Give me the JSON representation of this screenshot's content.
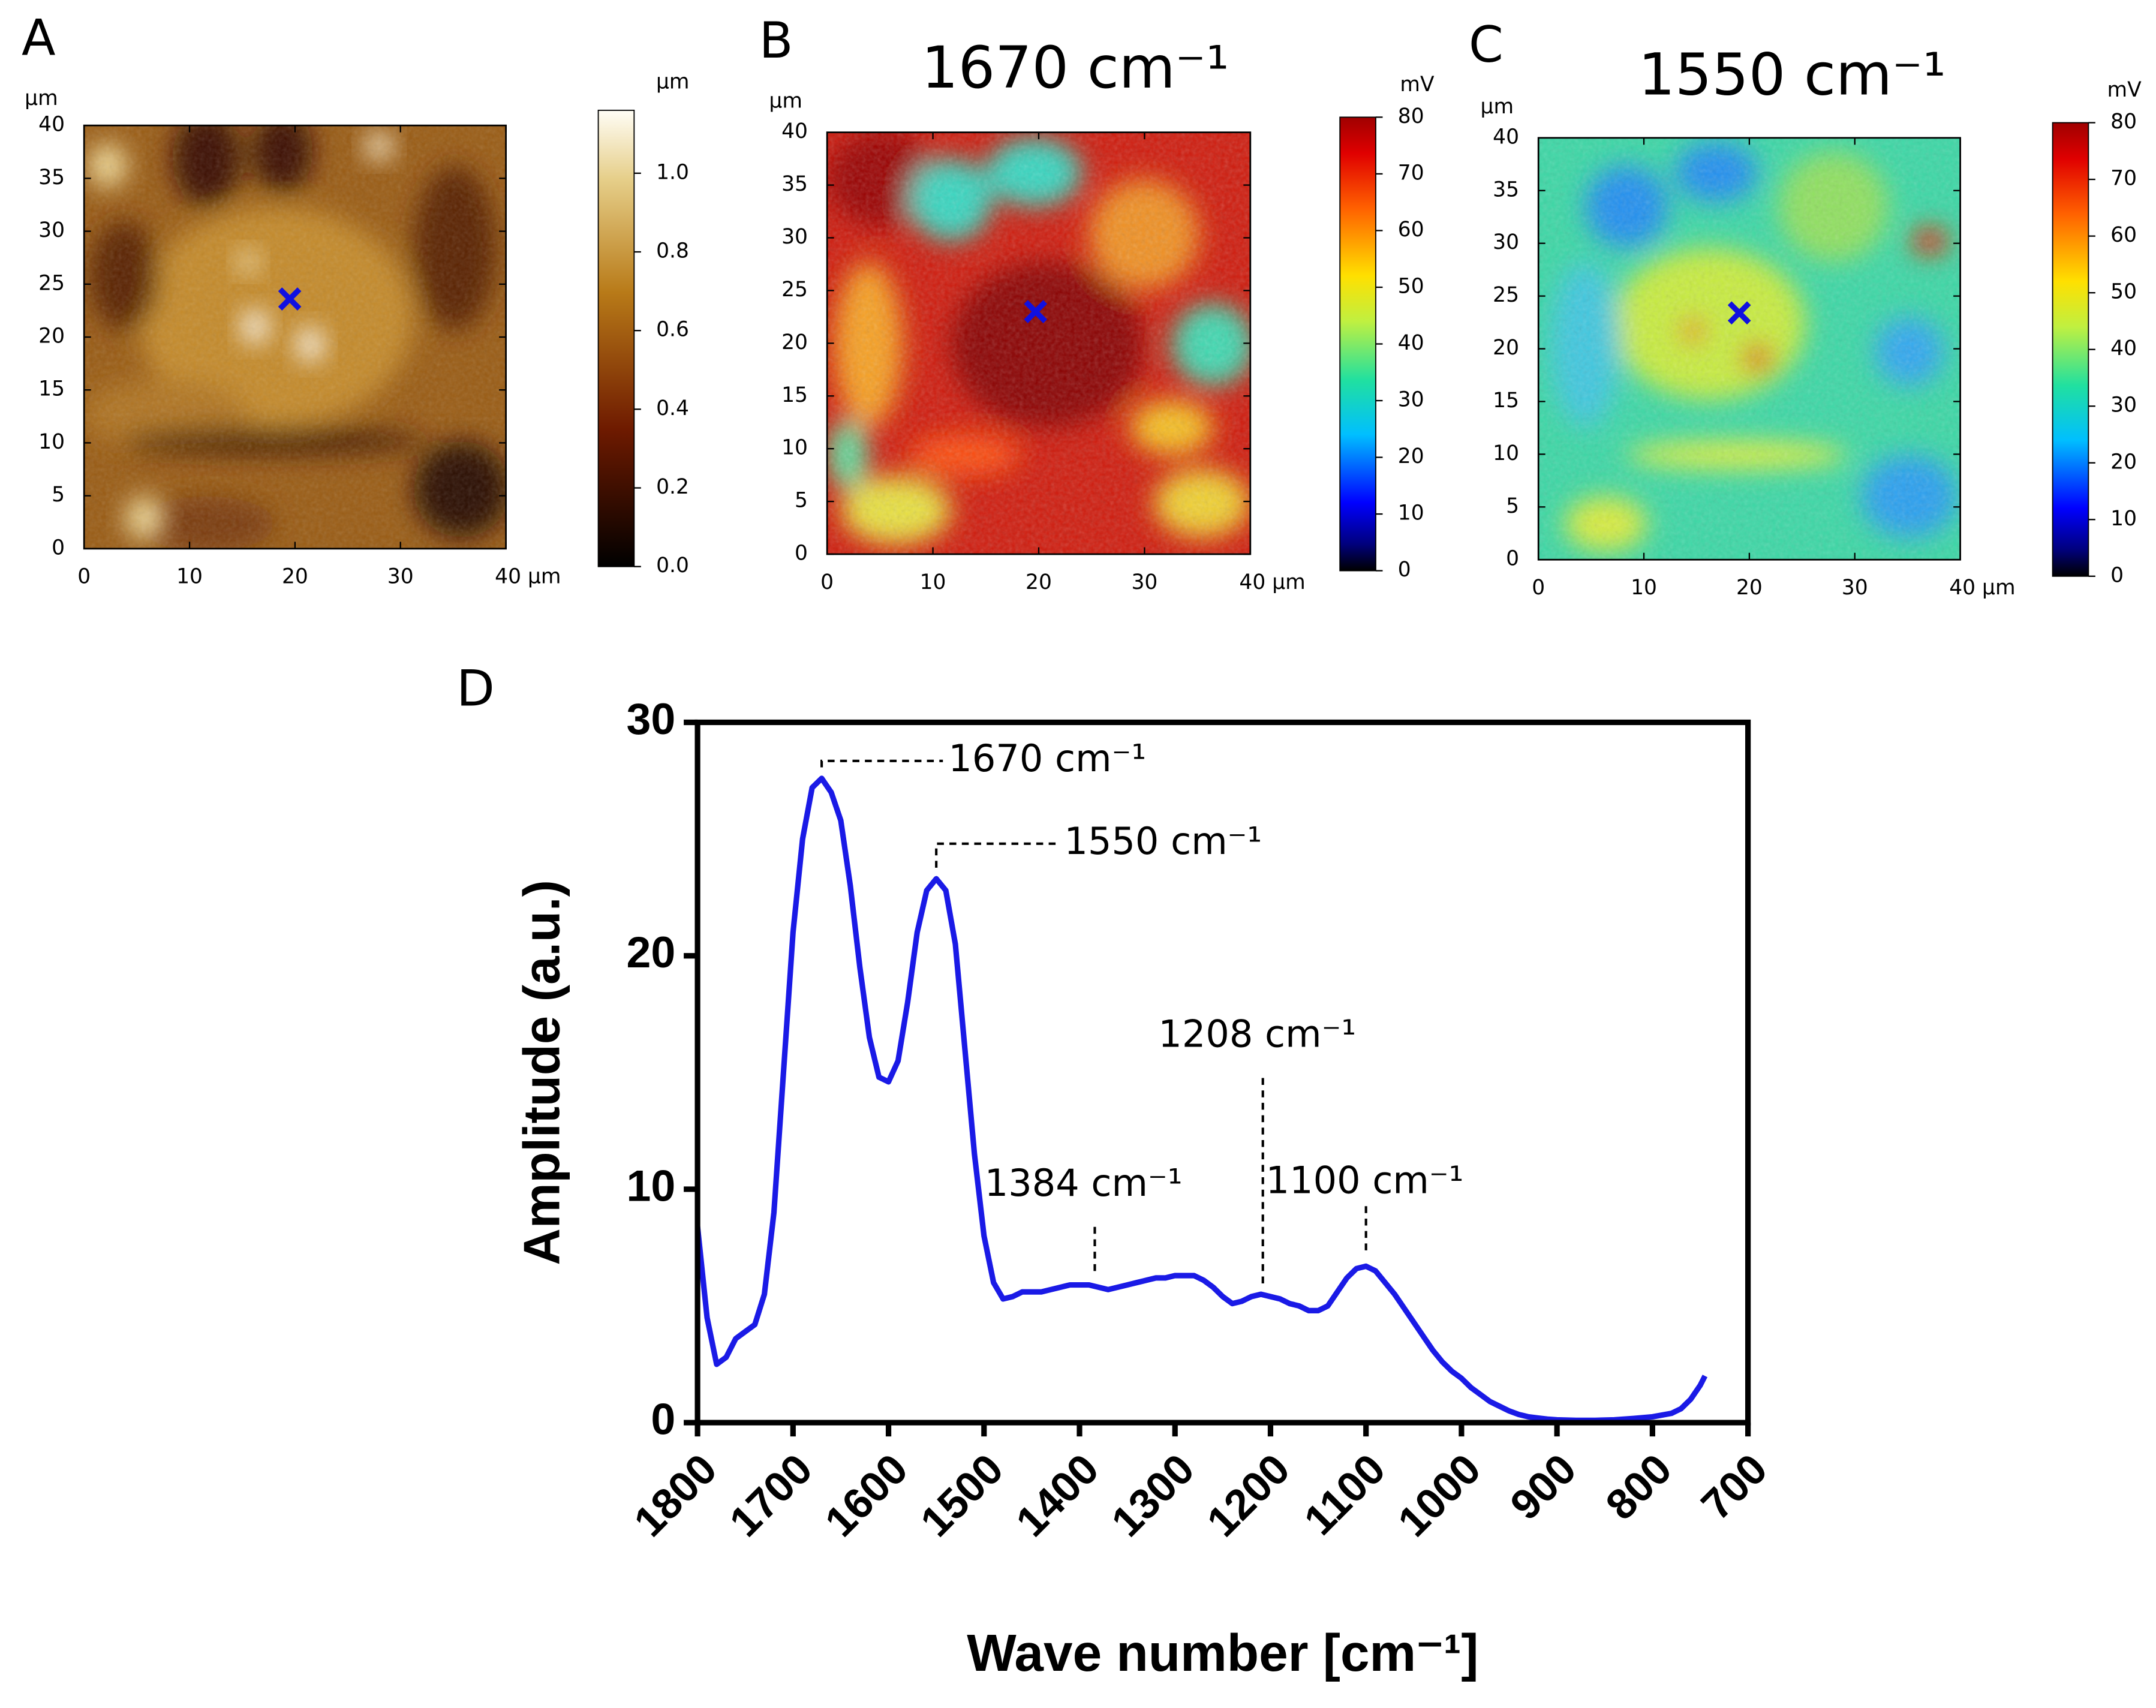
{
  "chart_data": [
    {
      "type": "heatmap",
      "panel_label": "A",
      "colormap": "afmhot",
      "y_unit": "μm",
      "xlim": [
        0,
        40
      ],
      "ylim": [
        0,
        40
      ],
      "xticks": [
        0,
        10,
        20,
        30,
        {
          "value": 40,
          "label": "40 μm"
        }
      ],
      "yticks": [
        0,
        5,
        10,
        15,
        20,
        25,
        30,
        35,
        40
      ],
      "colorbar": {
        "unit": "μm",
        "lim": [
          0,
          1.16
        ],
        "ticks": [
          {
            "value": 0,
            "label": "0.0"
          },
          {
            "value": 0.2,
            "label": "0.2"
          },
          {
            "value": 0.4,
            "label": "0.4"
          },
          {
            "value": 0.6,
            "label": "0.6"
          },
          {
            "value": 0.8,
            "label": "0.8"
          },
          {
            "value": 1,
            "label": "1.0"
          }
        ]
      },
      "marker": {
        "x": 19.5,
        "y": 23.6,
        "color": "#1010e0"
      }
    },
    {
      "type": "heatmap",
      "panel_label": "B",
      "title": "1670 cm⁻¹",
      "colormap": "jet",
      "y_unit": "μm",
      "xlim": [
        0,
        40
      ],
      "ylim": [
        0,
        40
      ],
      "xticks": [
        0,
        10,
        20,
        30,
        {
          "value": 40,
          "label": "40 μm"
        }
      ],
      "yticks": [
        0,
        5,
        10,
        15,
        20,
        25,
        30,
        35,
        40
      ],
      "colorbar": {
        "unit": "mV",
        "lim": [
          0,
          80
        ],
        "ticks": [
          0,
          10,
          20,
          30,
          40,
          50,
          60,
          70,
          80
        ]
      },
      "marker": {
        "x": 19.7,
        "y": 23,
        "color": "#1010e0"
      }
    },
    {
      "type": "heatmap",
      "panel_label": "C",
      "title": "1550 cm⁻¹",
      "colormap": "jet",
      "y_unit": "μm",
      "xlim": [
        0,
        40
      ],
      "ylim": [
        0,
        40
      ],
      "xticks": [
        0,
        10,
        20,
        30,
        {
          "value": 40,
          "label": "40 μm"
        }
      ],
      "yticks": [
        0,
        5,
        10,
        15,
        20,
        25,
        30,
        35,
        40
      ],
      "colorbar": {
        "unit": "mV",
        "lim": [
          0,
          80
        ],
        "ticks": [
          0,
          10,
          20,
          30,
          40,
          50,
          60,
          70,
          80
        ]
      },
      "marker": {
        "x": 19.05,
        "y": 23.4,
        "color": "#1010e0"
      }
    },
    {
      "type": "line",
      "panel_label": "D",
      "x_label": "Wave number  [cm⁻¹]",
      "y_label": "Amplitude (a.u.)",
      "xlim": [
        1800,
        700
      ],
      "ylim": [
        0,
        30
      ],
      "xticks": [
        1800,
        1700,
        1600,
        1500,
        1400,
        1300,
        1200,
        1100,
        1000,
        900,
        800,
        700
      ],
      "yticks": [
        0,
        10,
        20,
        30
      ],
      "x": [
        1800,
        1790,
        1780,
        1770,
        1760,
        1750,
        1740,
        1730,
        1720,
        1710,
        1700,
        1690,
        1680,
        1670,
        1660,
        1650,
        1640,
        1630,
        1620,
        1610,
        1600,
        1590,
        1580,
        1570,
        1560,
        1550,
        1540,
        1530,
        1520,
        1510,
        1500,
        1490,
        1480,
        1470,
        1460,
        1450,
        1440,
        1430,
        1420,
        1410,
        1400,
        1390,
        1380,
        1370,
        1360,
        1350,
        1340,
        1330,
        1320,
        1310,
        1300,
        1290,
        1280,
        1270,
        1260,
        1250,
        1240,
        1230,
        1220,
        1210,
        1200,
        1190,
        1180,
        1170,
        1160,
        1150,
        1140,
        1130,
        1120,
        1110,
        1100,
        1090,
        1080,
        1070,
        1060,
        1050,
        1040,
        1030,
        1020,
        1010,
        1000,
        990,
        980,
        970,
        960,
        950,
        940,
        930,
        920,
        910,
        900,
        880,
        860,
        840,
        820,
        800,
        780,
        770,
        760,
        750,
        745
      ],
      "series": [
        {
          "name": "Spectrum",
          "color": "#1a1ae6",
          "values": [
            8.4,
            4.5,
            2.5,
            2.8,
            3.6,
            3.9,
            4.2,
            5.5,
            9,
            15,
            21,
            25,
            27.2,
            27.6,
            27,
            25.8,
            23,
            19.5,
            16.5,
            14.8,
            14.6,
            15.5,
            18,
            21,
            22.8,
            23.3,
            22.8,
            20.5,
            16,
            11.5,
            8,
            6,
            5.3,
            5.4,
            5.6,
            5.6,
            5.6,
            5.7,
            5.8,
            5.9,
            5.9,
            5.9,
            5.8,
            5.7,
            5.8,
            5.9,
            6,
            6.1,
            6.2,
            6.2,
            6.3,
            6.3,
            6.3,
            6.1,
            5.8,
            5.4,
            5.1,
            5.2,
            5.4,
            5.5,
            5.4,
            5.3,
            5.1,
            5,
            4.8,
            4.8,
            5,
            5.6,
            6.2,
            6.6,
            6.7,
            6.5,
            6,
            5.5,
            4.9,
            4.3,
            3.7,
            3.1,
            2.6,
            2.2,
            1.9,
            1.5,
            1.2,
            0.9,
            0.7,
            0.5,
            0.35,
            0.25,
            0.2,
            0.15,
            0.12,
            0.1,
            0.1,
            0.12,
            0.18,
            0.25,
            0.4,
            0.6,
            1,
            1.6,
            2
          ]
        }
      ],
      "annotations": [
        {
          "text": "1670 cm⁻¹",
          "x": 1670
        },
        {
          "text": "1550 cm⁻¹",
          "x": 1550
        },
        {
          "text": "1384 cm⁻¹",
          "x": 1384
        },
        {
          "text": "1208 cm⁻¹",
          "x": 1208
        },
        {
          "text": "1100 cm⁻¹",
          "x": 1100
        }
      ]
    }
  ]
}
